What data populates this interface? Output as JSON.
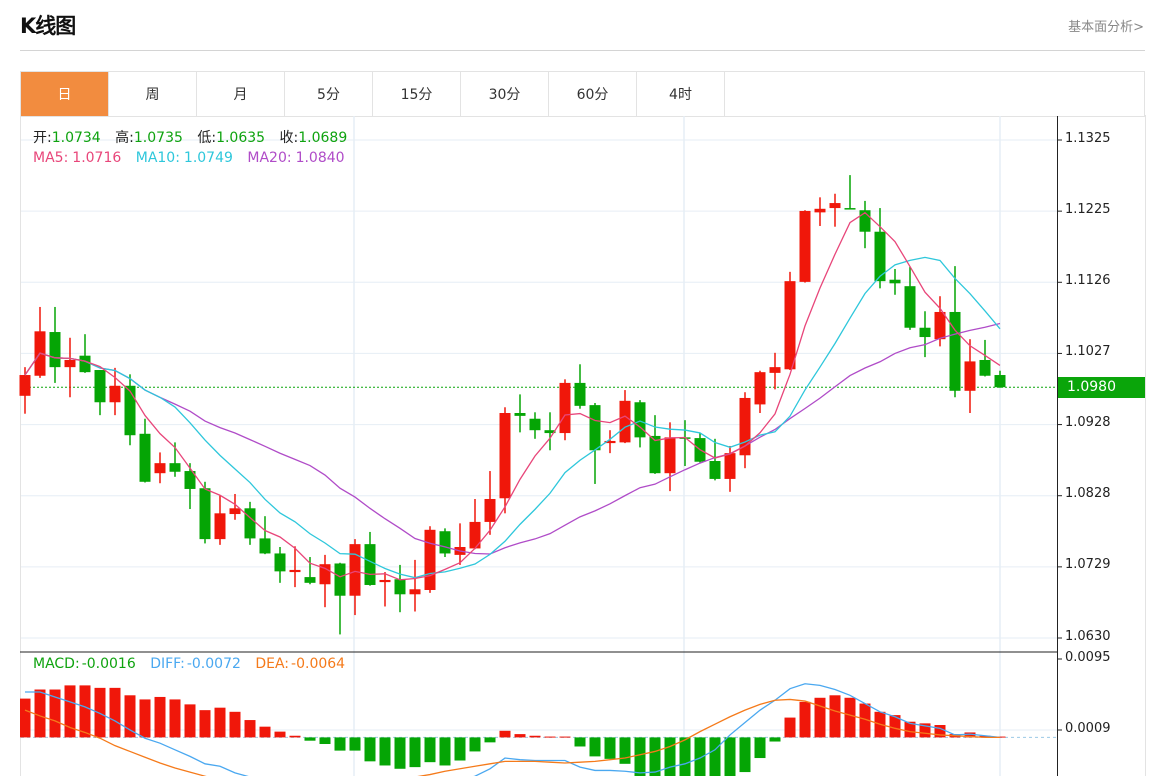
{
  "header": {
    "title": "K线图",
    "link": "基本面分析>"
  },
  "tabs": [
    {
      "label": "日",
      "active": true
    },
    {
      "label": "周",
      "active": false
    },
    {
      "label": "月",
      "active": false
    },
    {
      "label": "5分",
      "active": false
    },
    {
      "label": "15分",
      "active": false
    },
    {
      "label": "30分",
      "active": false
    },
    {
      "label": "60分",
      "active": false
    },
    {
      "label": "4时",
      "active": false
    }
  ],
  "info": {
    "open_label": "开:",
    "open": "1.0734",
    "high_label": "高:",
    "high": "1.0735",
    "low_label": "低:",
    "low": "1.0635",
    "close_label": "收:",
    "close": "1.0689",
    "ma5_label": "MA5:",
    "ma5": "1.0716",
    "ma10_label": "MA10:",
    "ma10": "1.0749",
    "ma20_label": "MA20:",
    "ma20": "1.0840",
    "macd_label": "MACD:",
    "macd": "-0.0016",
    "diff_label": "DIFF:",
    "diff": "-0.0072",
    "dea_label": "DEA:",
    "dea": "-0.0064"
  },
  "colors": {
    "up": "#f0170a",
    "down": "#05a505",
    "ma5": "#e8467a",
    "ma10": "#2ec7db",
    "ma20": "#b04cc8",
    "diff": "#4aa8f0",
    "dea": "#f57a1a",
    "active_tab": "#f28c3f"
  },
  "chart_data": {
    "type": "candlestick",
    "title": "K线图",
    "price_axis": {
      "ticks": [
        "1.1325",
        "1.1225",
        "1.1126",
        "1.1027",
        "1.0928",
        "1.0828",
        "1.0729",
        "1.0630"
      ],
      "range": [
        1.063,
        1.1325
      ]
    },
    "current_price": "1.0980",
    "ohlc": [
      [
        1.0968,
        1.1008,
        1.0943,
        1.0997
      ],
      [
        1.0996,
        1.1092,
        1.0993,
        1.1058
      ],
      [
        1.1057,
        1.1092,
        1.0986,
        1.1008
      ],
      [
        1.1008,
        1.1049,
        1.0966,
        1.1018
      ],
      [
        1.1024,
        1.1054,
        1.1,
        1.1001
      ],
      [
        1.1004,
        1.1004,
        1.0941,
        1.0959
      ],
      [
        1.0959,
        1.1007,
        1.0941,
        1.0982
      ],
      [
        1.0982,
        1.0998,
        1.0899,
        1.0913
      ],
      [
        1.0915,
        1.0936,
        1.0847,
        1.0848
      ],
      [
        1.086,
        1.0889,
        1.0846,
        1.0874
      ],
      [
        1.0874,
        1.0903,
        1.0855,
        1.0862
      ],
      [
        1.0863,
        1.0874,
        1.081,
        1.0838
      ],
      [
        1.0839,
        1.0848,
        1.0762,
        1.0768
      ],
      [
        1.0768,
        1.0829,
        1.076,
        1.0804
      ],
      [
        1.0803,
        1.0831,
        1.0795,
        1.0811
      ],
      [
        1.0811,
        1.082,
        1.076,
        1.0769
      ],
      [
        1.0769,
        1.08,
        1.0747,
        1.0748
      ],
      [
        1.0748,
        1.0757,
        1.0707,
        1.0723
      ],
      [
        1.0722,
        1.0758,
        1.0701,
        1.0725
      ],
      [
        1.0715,
        1.0743,
        1.0705,
        1.0707
      ],
      [
        1.0705,
        1.0746,
        1.0673,
        1.0733
      ],
      [
        1.0734,
        1.0735,
        1.0635,
        1.0689
      ],
      [
        1.0689,
        1.0768,
        1.0662,
        1.0761
      ],
      [
        1.0761,
        1.0778,
        1.0703,
        1.0704
      ],
      [
        1.0708,
        1.0722,
        1.0674,
        1.0711
      ],
      [
        1.0712,
        1.0732,
        1.0666,
        1.0691
      ],
      [
        1.0691,
        1.0739,
        1.0667,
        1.0698
      ],
      [
        1.0697,
        1.0786,
        1.0693,
        1.0781
      ],
      [
        1.0779,
        1.0783,
        1.0743,
        1.0748
      ],
      [
        1.0746,
        1.079,
        1.0732,
        1.0757
      ],
      [
        1.0755,
        1.0824,
        1.0754,
        1.0792
      ],
      [
        1.0792,
        1.0863,
        1.0774,
        1.0824
      ],
      [
        1.0825,
        1.0952,
        1.0804,
        1.0944
      ],
      [
        1.0944,
        1.097,
        1.0917,
        1.094
      ],
      [
        1.0936,
        1.0945,
        1.0908,
        1.092
      ],
      [
        1.092,
        1.0945,
        1.0892,
        1.0916
      ],
      [
        1.0916,
        1.0991,
        1.0906,
        1.0986
      ],
      [
        1.0986,
        1.1012,
        1.095,
        1.0954
      ],
      [
        1.0955,
        1.0958,
        1.0845,
        1.0892
      ],
      [
        1.0902,
        1.092,
        1.0888,
        1.0905
      ],
      [
        1.0903,
        1.0976,
        1.0902,
        1.0961
      ],
      [
        1.0959,
        1.0962,
        1.0896,
        1.091
      ],
      [
        1.0912,
        1.0941,
        1.0859,
        1.086
      ],
      [
        1.086,
        1.0931,
        1.0835,
        1.091
      ],
      [
        1.091,
        1.0934,
        1.087,
        1.0908
      ],
      [
        1.0909,
        1.0916,
        1.0875,
        1.0876
      ],
      [
        1.0877,
        1.0908,
        1.085,
        1.0852
      ],
      [
        1.0852,
        1.0898,
        1.0834,
        1.0888
      ],
      [
        1.0885,
        1.0973,
        1.0867,
        1.0965
      ],
      [
        1.0956,
        1.1003,
        1.0944,
        1.1001
      ],
      [
        1.1,
        1.1028,
        1.0977,
        1.1008
      ],
      [
        1.1005,
        1.1141,
        1.1004,
        1.1128
      ],
      [
        1.1127,
        1.1227,
        1.1126,
        1.1226
      ],
      [
        1.1224,
        1.1245,
        1.1205,
        1.1229
      ],
      [
        1.123,
        1.125,
        1.1204,
        1.1237
      ],
      [
        1.123,
        1.1276,
        1.1228,
        1.1229
      ],
      [
        1.1227,
        1.124,
        1.1174,
        1.1197
      ],
      [
        1.1197,
        1.123,
        1.1118,
        1.1128
      ],
      [
        1.113,
        1.1145,
        1.1109,
        1.1125
      ],
      [
        1.1121,
        1.1148,
        1.106,
        1.1063
      ],
      [
        1.1063,
        1.1086,
        1.1022,
        1.105
      ],
      [
        1.1047,
        1.1107,
        1.1037,
        1.1085
      ],
      [
        1.1085,
        1.1149,
        1.0966,
        1.0975
      ],
      [
        1.0975,
        1.1047,
        1.0944,
        1.1016
      ],
      [
        1.1018,
        1.1046,
        1.0995,
        1.0996
      ],
      [
        1.0997,
        1.1003,
        1.0979,
        1.098
      ]
    ],
    "macd_axis": {
      "ticks": [
        "0.0095",
        "0.0009"
      ]
    },
    "macd": [
      0.0047,
      0.0058,
      0.0058,
      0.0063,
      0.0063,
      0.006,
      0.006,
      0.0051,
      0.0046,
      0.0049,
      0.0046,
      0.004,
      0.0033,
      0.0036,
      0.0031,
      0.0021,
      0.0013,
      0.0007,
      0.0002,
      -0.0004,
      -0.0008,
      -0.0016,
      -0.0016,
      -0.0029,
      -0.0034,
      -0.0038,
      -0.0036,
      -0.003,
      -0.0034,
      -0.0028,
      -0.0017,
      -0.0006,
      0.0008,
      0.0004,
      0.0002,
      0.0001,
      0.0001,
      -0.0011,
      -0.0023,
      -0.0026,
      -0.0032,
      -0.0048,
      -0.005,
      -0.005,
      -0.0052,
      -0.005,
      -0.0048,
      -0.0048,
      -0.0042,
      -0.0025,
      -0.0005,
      0.0024,
      0.0043,
      0.0048,
      0.0051,
      0.0048,
      0.0041,
      0.0031,
      0.0027,
      0.0019,
      0.0017,
      0.0015,
      0.0004,
      0.0006,
      0.0002,
      0.0001
    ],
    "diff": [
      0.0055,
      0.0055,
      0.0049,
      0.0043,
      0.0037,
      0.0029,
      0.002,
      0.0009,
      -0.0001,
      -0.0007,
      -0.0015,
      -0.0023,
      -0.0032,
      -0.0035,
      -0.0043,
      -0.0048,
      -0.0053,
      -0.0058,
      -0.0063,
      -0.0067,
      -0.007,
      -0.0072,
      -0.0068,
      -0.007,
      -0.0071,
      -0.007,
      -0.0066,
      -0.006,
      -0.0058,
      -0.0052,
      -0.0047,
      -0.0038,
      -0.0025,
      -0.0027,
      -0.0028,
      -0.0028,
      -0.0028,
      -0.0036,
      -0.004,
      -0.004,
      -0.0041,
      -0.0043,
      -0.0042,
      -0.0036,
      -0.0032,
      -0.0025,
      -0.0015,
      0.0003,
      0.0018,
      0.0033,
      0.0045,
      0.0059,
      0.0065,
      0.0063,
      0.0058,
      0.0051,
      0.0041,
      0.0031,
      0.0025,
      0.0017,
      0.0014,
      0.0011,
      0.0003,
      0.0004,
      0.0002,
      0.0
    ],
    "dea": [
      0.0033,
      0.0026,
      0.002,
      0.0012,
      0.0006,
      -0.0001,
      -0.001,
      -0.0017,
      -0.0024,
      -0.0031,
      -0.0037,
      -0.0042,
      -0.0047,
      -0.0052,
      -0.0055,
      -0.0058,
      -0.006,
      -0.0062,
      -0.0063,
      -0.0064,
      -0.0064,
      -0.0064,
      -0.0061,
      -0.0058,
      -0.0055,
      -0.0052,
      -0.0048,
      -0.0045,
      -0.0041,
      -0.0038,
      -0.0035,
      -0.0032,
      -0.0029,
      -0.0029,
      -0.0029,
      -0.003,
      -0.0031,
      -0.003,
      -0.0029,
      -0.0027,
      -0.0025,
      -0.0021,
      -0.0017,
      -0.0011,
      -0.0003,
      0.0007,
      0.0016,
      0.0025,
      0.0033,
      0.004,
      0.0045,
      0.0046,
      0.0044,
      0.0038,
      0.0032,
      0.0027,
      0.0022,
      0.0016,
      0.0011,
      0.0007,
      0.0005,
      0.0003,
      0.0002,
      0.0001,
      0.0,
      0.0
    ]
  }
}
